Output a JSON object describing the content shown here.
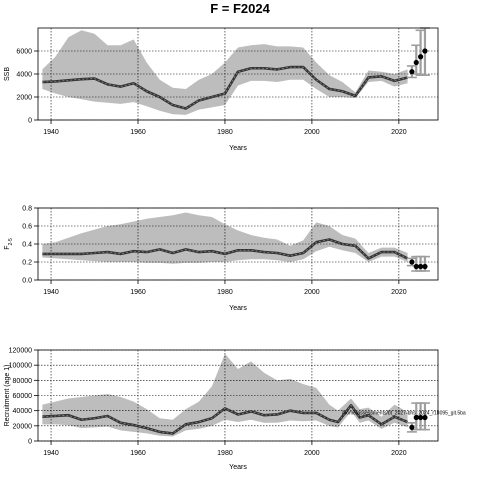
{
  "title": "F = F2024",
  "colors": {
    "band": "#bdbdbd",
    "band_light": "#d4d4d4",
    "line": "#333333",
    "grid": "#000000",
    "projection_bar": "#9e9e9e",
    "projection_point": "#000000"
  },
  "chart_data": [
    {
      "type": "line",
      "xlabel": "Years",
      "ylabel": "SSB",
      "xlim": [
        1937,
        2029
      ],
      "ylim": [
        0,
        8000
      ],
      "xticks": [
        1940,
        1960,
        1980,
        2000,
        2020
      ],
      "yticks": [
        0,
        2000,
        4000,
        6000
      ],
      "grid": true,
      "x": [
        1938,
        1941,
        1944,
        1947,
        1950,
        1953,
        1956,
        1959,
        1962,
        1965,
        1968,
        1971,
        1974,
        1977,
        1980,
        1983,
        1986,
        1989,
        1992,
        1995,
        1998,
        2001,
        2004,
        2007,
        2010,
        2013,
        2016,
        2019,
        2022
      ],
      "mid": [
        3300,
        3350,
        3450,
        3550,
        3600,
        3100,
        2900,
        3200,
        2500,
        2000,
        1300,
        1000,
        1700,
        2000,
        2300,
        4200,
        4500,
        4500,
        4400,
        4600,
        4600,
        3500,
        2700,
        2500,
        2100,
        3700,
        3800,
        3400,
        3700
      ],
      "lower": [
        2700,
        2300,
        2000,
        1800,
        1600,
        1500,
        1400,
        1550,
        1200,
        800,
        500,
        450,
        900,
        1100,
        1300,
        3000,
        3400,
        3400,
        3300,
        3500,
        3500,
        2700,
        2000,
        2000,
        1900,
        3300,
        3400,
        2900,
        3200
      ],
      "upper": [
        4400,
        5500,
        7200,
        7800,
        7500,
        6500,
        6500,
        7000,
        5000,
        3500,
        2800,
        2700,
        3500,
        4000,
        5000,
        6300,
        6500,
        6600,
        6400,
        6400,
        6300,
        5000,
        3900,
        3300,
        2400,
        4300,
        4200,
        4000,
        4400
      ],
      "projection": {
        "x": [
          2023,
          2024,
          2025,
          2026
        ],
        "mid": [
          4200,
          5000,
          5500,
          6000
        ],
        "lower": [
          3700,
          4000,
          3900,
          3900
        ],
        "upper": [
          4700,
          6500,
          7800,
          8000
        ]
      }
    },
    {
      "type": "line",
      "xlabel": "Years",
      "ylabel": "F",
      "ylabel_sub": "2-5",
      "xlim": [
        1937,
        2029
      ],
      "ylim": [
        0,
        0.8
      ],
      "xticks": [
        1940,
        1960,
        1980,
        2000,
        2020
      ],
      "yticks": [
        0.0,
        0.2,
        0.4,
        0.6,
        0.8
      ],
      "ytick_labels": [
        "0.0",
        "0.2",
        "0.4",
        "0.6",
        "0.8"
      ],
      "grid": true,
      "x": [
        1938,
        1941,
        1944,
        1947,
        1950,
        1953,
        1956,
        1959,
        1962,
        1965,
        1968,
        1971,
        1974,
        1977,
        1980,
        1983,
        1986,
        1989,
        1992,
        1995,
        1998,
        2001,
        2004,
        2007,
        2010,
        2013,
        2016,
        2019,
        2022
      ],
      "mid": [
        0.29,
        0.29,
        0.29,
        0.29,
        0.3,
        0.31,
        0.29,
        0.32,
        0.31,
        0.34,
        0.3,
        0.34,
        0.31,
        0.32,
        0.29,
        0.33,
        0.33,
        0.31,
        0.3,
        0.27,
        0.3,
        0.42,
        0.45,
        0.4,
        0.38,
        0.24,
        0.31,
        0.31,
        0.24
      ],
      "lower": [
        0.25,
        0.24,
        0.23,
        0.22,
        0.21,
        0.2,
        0.2,
        0.2,
        0.19,
        0.19,
        0.18,
        0.19,
        0.19,
        0.2,
        0.2,
        0.22,
        0.23,
        0.23,
        0.22,
        0.2,
        0.23,
        0.32,
        0.37,
        0.33,
        0.3,
        0.2,
        0.26,
        0.26,
        0.2
      ],
      "upper": [
        0.4,
        0.42,
        0.47,
        0.52,
        0.56,
        0.6,
        0.62,
        0.65,
        0.68,
        0.7,
        0.72,
        0.75,
        0.72,
        0.7,
        0.62,
        0.55,
        0.5,
        0.47,
        0.45,
        0.38,
        0.44,
        0.64,
        0.6,
        0.5,
        0.46,
        0.3,
        0.36,
        0.36,
        0.3
      ],
      "projection": {
        "x": [
          2023,
          2024,
          2025,
          2026
        ],
        "mid": [
          0.2,
          0.15,
          0.15,
          0.15
        ],
        "lower": [
          0.16,
          0.1,
          0.1,
          0.1
        ],
        "upper": [
          0.24,
          0.26,
          0.26,
          0.26
        ]
      }
    },
    {
      "type": "line",
      "xlabel": "Years",
      "ylabel": "Recruitment (age 1)",
      "xlim": [
        1937,
        2029
      ],
      "ylim": [
        0,
        120000
      ],
      "xticks": [
        1940,
        1960,
        1980,
        2000,
        2020
      ],
      "yticks": [
        0,
        20000,
        40000,
        60000,
        80000,
        100000,
        120000
      ],
      "grid": true,
      "annotation": "/home/assessments/bt_2027-bhs_2024_r18095_git.5ba",
      "x": [
        1938,
        1941,
        1944,
        1947,
        1950,
        1953,
        1956,
        1959,
        1962,
        1965,
        1968,
        1971,
        1974,
        1977,
        1980,
        1983,
        1986,
        1989,
        1992,
        1995,
        1998,
        2001,
        2004,
        2006,
        2009,
        2011,
        2013,
        2016,
        2019,
        2022
      ],
      "mid": [
        32000,
        33000,
        34000,
        28000,
        30000,
        33000,
        24000,
        21000,
        17000,
        12000,
        10000,
        22000,
        25000,
        30000,
        43000,
        35000,
        39000,
        34000,
        35000,
        40000,
        37000,
        37000,
        28000,
        25000,
        47000,
        31000,
        34000,
        22000,
        32000,
        25000
      ],
      "lower": [
        22000,
        22000,
        21000,
        17000,
        18000,
        19000,
        14000,
        12000,
        10000,
        7000,
        6000,
        14000,
        16000,
        20000,
        28000,
        25000,
        28000,
        24000,
        24000,
        27000,
        26000,
        27000,
        20000,
        18000,
        39000,
        24000,
        27000,
        16000,
        24000,
        18000
      ],
      "upper": [
        48000,
        52000,
        56000,
        58000,
        60000,
        62000,
        58000,
        52000,
        42000,
        30000,
        28000,
        42000,
        52000,
        72000,
        115000,
        95000,
        105000,
        90000,
        80000,
        82000,
        75000,
        70000,
        48000,
        40000,
        56000,
        42000,
        44000,
        32000,
        48000,
        38000
      ],
      "projection": {
        "x": [
          2023,
          2024,
          2025,
          2026
        ],
        "mid": [
          18000,
          31000,
          31000,
          31000
        ],
        "lower": [
          12000,
          15000,
          15000,
          15000
        ],
        "upper": [
          24000,
          50000,
          50000,
          50000
        ]
      }
    }
  ]
}
